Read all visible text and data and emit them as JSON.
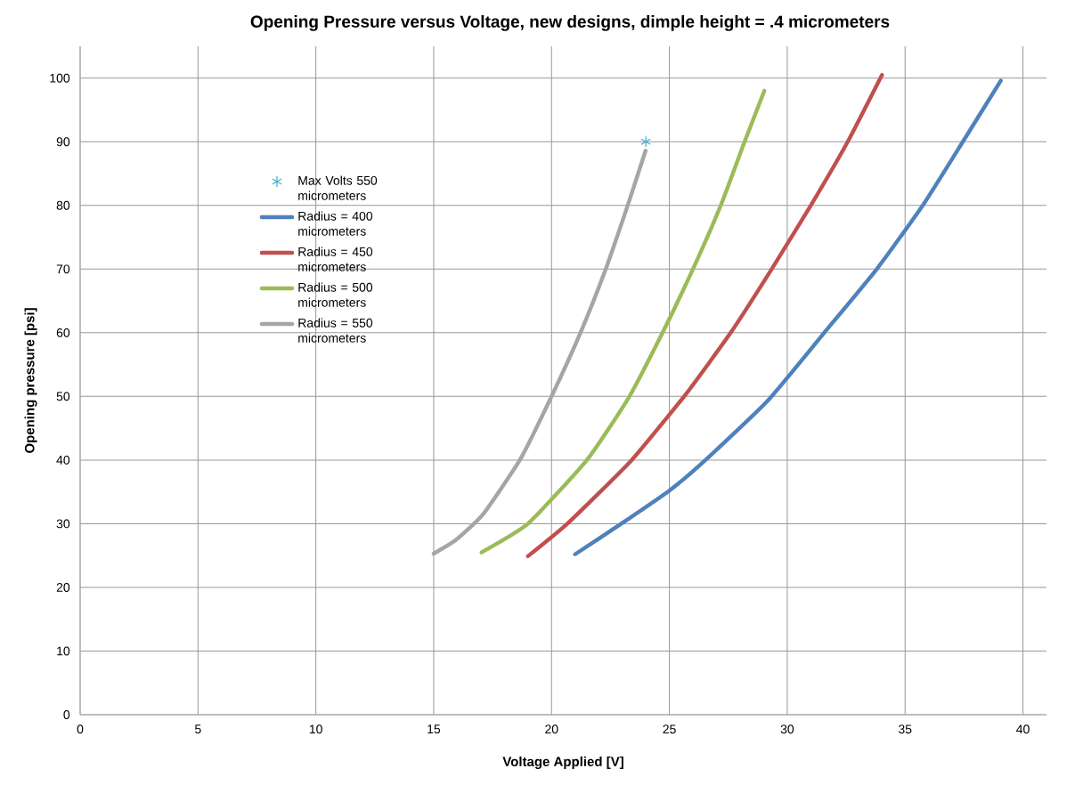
{
  "chart_data": {
    "type": "line",
    "title": "Opening Pressure versus Voltage, new designs, dimple height = .4 micrometers",
    "xlabel": "Voltage Applied [V]",
    "ylabel": "Opening pressure [psi]",
    "xlim": [
      0,
      41
    ],
    "ylim": [
      0,
      105
    ],
    "xticks": [
      0,
      5,
      10,
      15,
      20,
      25,
      30,
      35,
      40
    ],
    "yticks": [
      0,
      10,
      20,
      30,
      40,
      50,
      60,
      70,
      80,
      90,
      100
    ],
    "grid": true,
    "legend": "top left",
    "line_style": "solid",
    "series": [
      {
        "name": "Max Volts 550 micrometers",
        "type": "scatter",
        "marker": "cross",
        "color": "#4bacc6",
        "x": [
          24
        ],
        "values": [
          90
        ]
      },
      {
        "name": "Radius = 400 micrometers",
        "color": "#4f81bd",
        "marker": "none",
        "x": [
          21.0,
          22.96,
          25.0,
          26.53,
          29.19,
          31.57,
          33.8,
          35.75,
          37.45,
          39.06
        ],
        "values": [
          25.2,
          30,
          35.2,
          40,
          49.4,
          60,
          70,
          80,
          90,
          99.6
        ]
      },
      {
        "name": "Radius = 450 micrometers",
        "color": "#c0504d",
        "marker": "none",
        "x": [
          19.0,
          20.67,
          23.4,
          25.73,
          27.6,
          29.34,
          31.0,
          32.55,
          34.02
        ],
        "values": [
          24.9,
          30,
          40,
          50.5,
          60,
          70,
          80,
          89.9,
          100.5
        ]
      },
      {
        "name": "Radius = 500 micrometers",
        "color": "#9bbb59",
        "marker": "none",
        "x": [
          17.03,
          19.0,
          21.5,
          23.29,
          24.71,
          26.0,
          27.18,
          28.19,
          29.03
        ],
        "values": [
          25.5,
          30,
          40,
          49.9,
          60,
          70,
          80,
          90,
          98
        ]
      },
      {
        "name": "Radius = 550 micrometers",
        "color": "#a5a5a5",
        "marker": "none",
        "x": [
          15.0,
          15.96,
          17.1,
          18.67,
          20.0,
          21.24,
          22.3,
          23.24,
          23.99
        ],
        "values": [
          25.3,
          27.5,
          31.5,
          40.1,
          50,
          60.1,
          70,
          80.1,
          88.6
        ]
      }
    ]
  }
}
